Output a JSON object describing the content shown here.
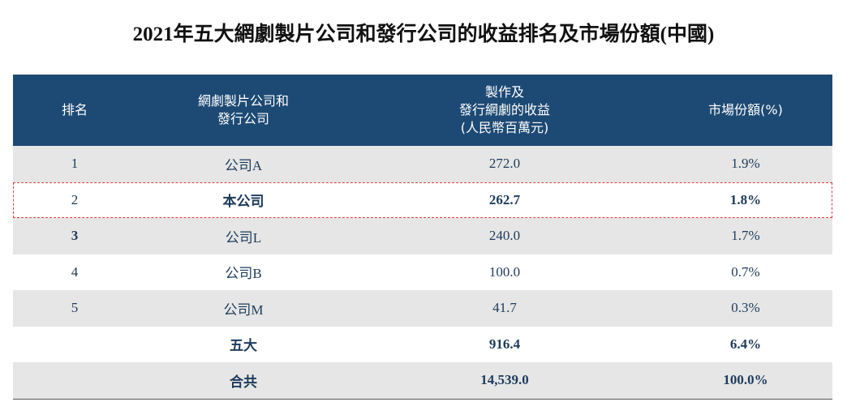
{
  "header": {
    "title": "2021年五大網劇製片公司和發行公司的收益排名及市場份額(中國)"
  },
  "table": {
    "columns": [
      [
        "排名"
      ],
      [
        "網劇製片公司和",
        "發行公司"
      ],
      [
        "製作及",
        "發行網劇的收益",
        "(人民幣百萬元)"
      ],
      [
        "市場份額(%)"
      ]
    ],
    "rows": [
      [
        "1",
        "公司A",
        "272.0",
        "1.9%"
      ],
      [
        "2",
        "本公司",
        "262.7",
        "1.8%"
      ],
      [
        "3",
        "公司L",
        "240.0",
        "1.7%"
      ],
      [
        "4",
        "公司B",
        "100.0",
        "0.7%"
      ],
      [
        "5",
        "公司M",
        "41.7",
        "0.3%"
      ],
      [
        null,
        "五大",
        "916.4",
        "6.4%"
      ],
      [
        null,
        "合共",
        "14,539.0",
        "100.0%"
      ]
    ]
  }
}
